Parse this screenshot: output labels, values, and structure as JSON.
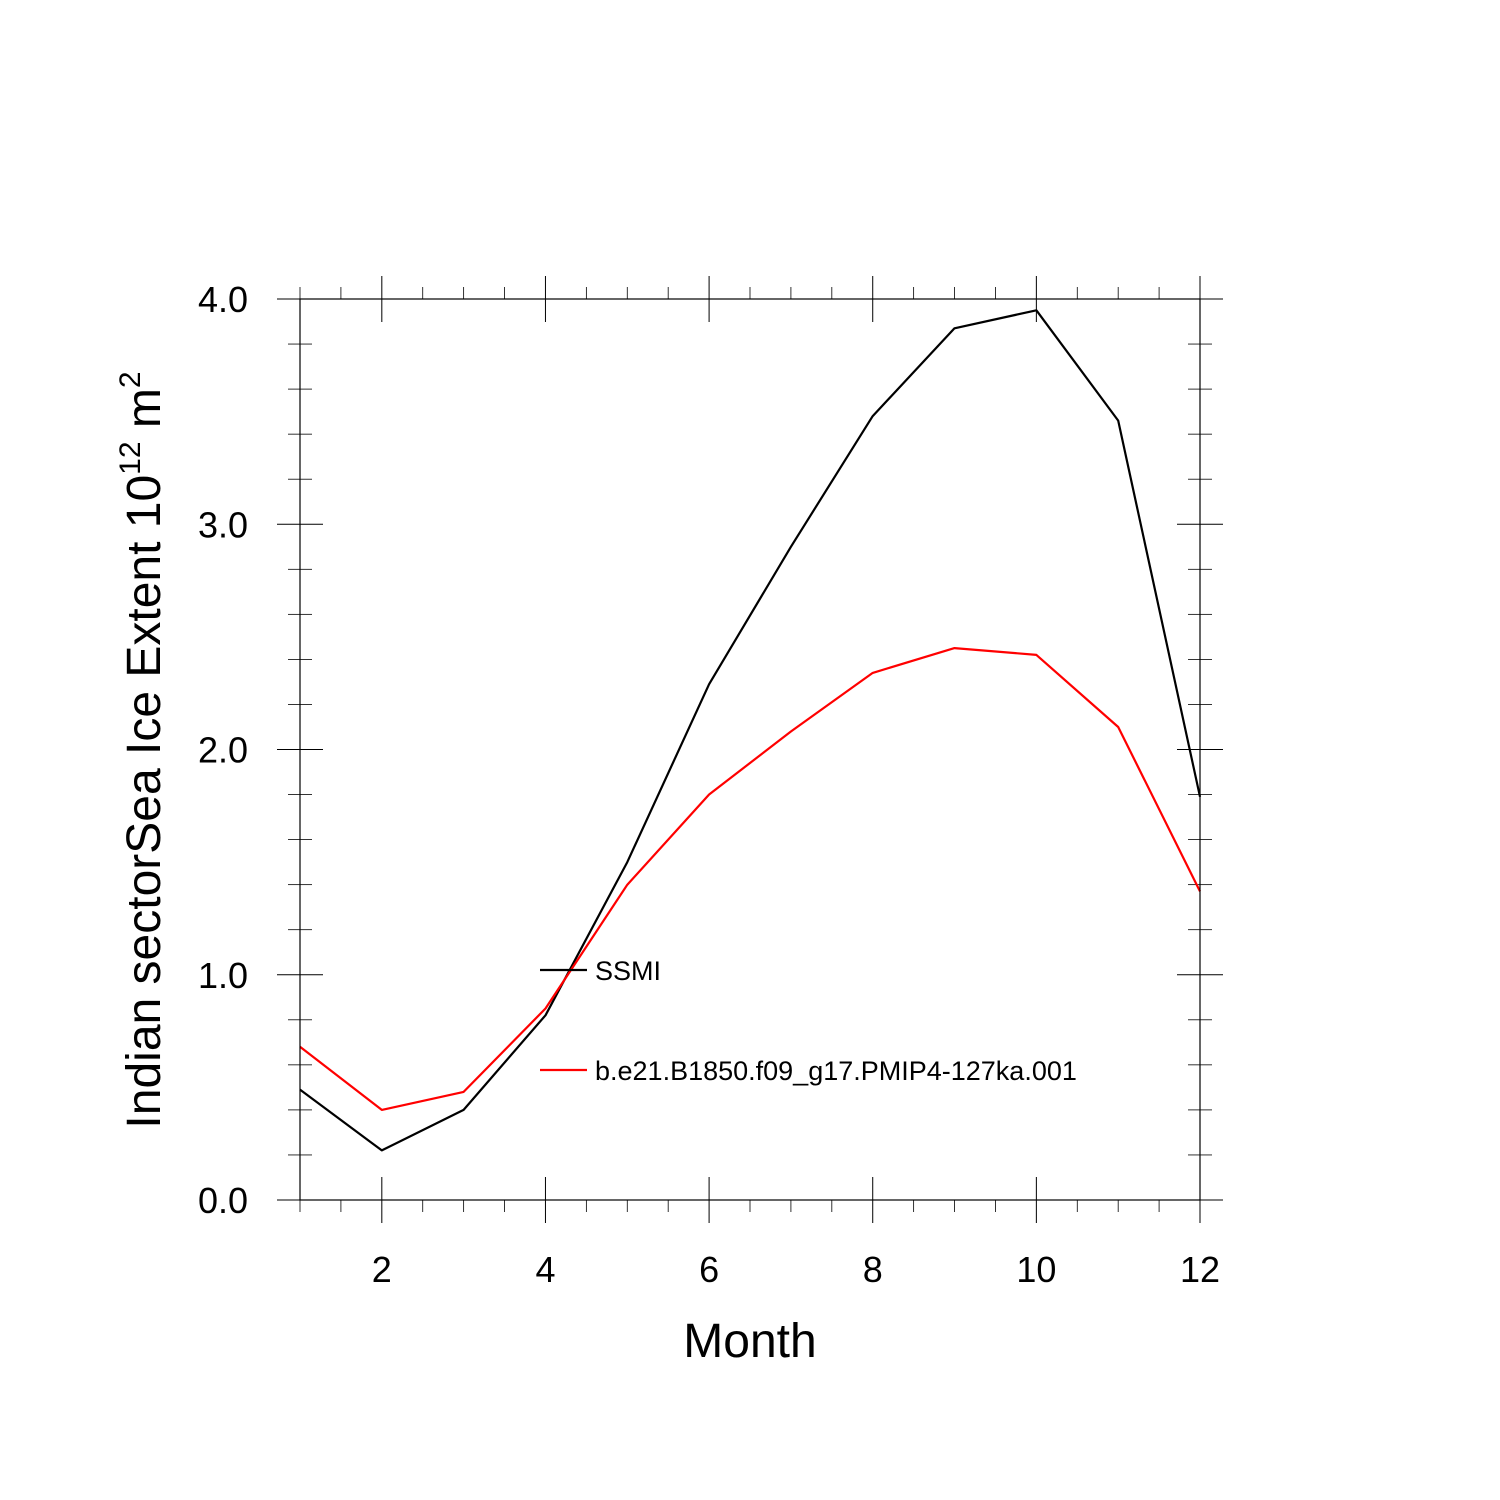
{
  "chart_data": {
    "type": "line",
    "xlabel": "Month",
    "ylabel": "Indian sectorSea Ice Extent 10",
    "ylabel_superscript": "12",
    "ylabel_unit": " m",
    "ylabel_unit_superscript": "2",
    "xlim": [
      1,
      12
    ],
    "ylim": [
      0.0,
      4.0
    ],
    "xticks": [
      2,
      4,
      6,
      8,
      10,
      12
    ],
    "xtick_labels": [
      "2",
      "4",
      "6",
      "8",
      "10",
      "12"
    ],
    "xminor_step": 0.5,
    "yticks": [
      0.0,
      1.0,
      2.0,
      3.0,
      4.0
    ],
    "ytick_labels": [
      "0.0",
      "1.0",
      "2.0",
      "3.0",
      "4.0"
    ],
    "yminor_step": 0.2,
    "grid": false,
    "legend_position": "center-left inside plot",
    "x": [
      1,
      2,
      3,
      4,
      5,
      6,
      7,
      8,
      9,
      10,
      11,
      12
    ],
    "series": [
      {
        "name": "SSMI",
        "color": "#000000",
        "values": [
          0.49,
          0.22,
          0.4,
          0.82,
          1.5,
          2.29,
          2.9,
          3.48,
          3.87,
          3.95,
          3.46,
          1.79
        ]
      },
      {
        "name": "b.e21.B1850.f09_g17.PMIP4-127ka.001",
        "color": "#ff0000",
        "values": [
          0.68,
          0.4,
          0.48,
          0.85,
          1.4,
          1.8,
          2.08,
          2.34,
          2.45,
          2.42,
          2.1,
          1.37
        ]
      }
    ]
  }
}
